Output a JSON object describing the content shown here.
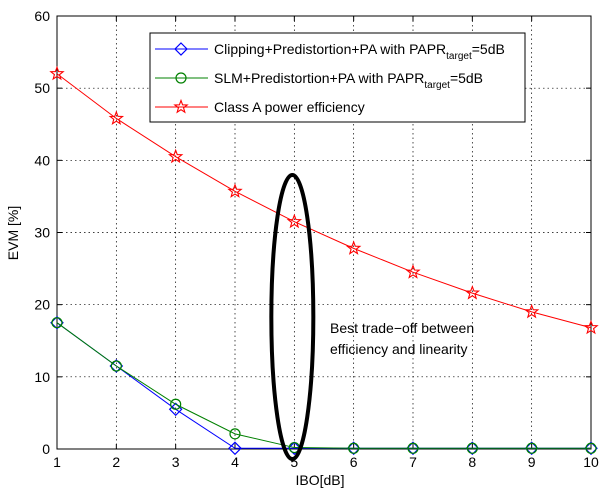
{
  "chart_data": {
    "type": "line",
    "xlabel": "IBO[dB]",
    "ylabel": "EVM [%]",
    "xlim": [
      1,
      10
    ],
    "ylim": [
      0,
      60
    ],
    "xticks": [
      1,
      2,
      3,
      4,
      5,
      6,
      7,
      8,
      9,
      10
    ],
    "yticks": [
      0,
      10,
      20,
      30,
      40,
      50,
      60
    ],
    "grid": true,
    "legend_position": "top-right",
    "x": [
      1,
      2,
      3,
      4,
      5,
      6,
      7,
      8,
      9,
      10
    ],
    "series": [
      {
        "name": "Clipping+Predistortion+PA with PAPRtarget=5dB",
        "legend_main": "Clipping+Predistortion+PA with PAPR",
        "legend_sub": "target",
        "legend_tail": "=5dB",
        "color": "#0000ff",
        "marker": "diamond",
        "values": [
          17.5,
          11.5,
          5.5,
          0.1,
          0.1,
          0.1,
          0.1,
          0.1,
          0.1,
          0.1
        ]
      },
      {
        "name": "SLM+Predistortion+PA with PAPRtarget=5dB",
        "legend_main": "SLM+Predistortion+PA with PAPR",
        "legend_sub": "target",
        "legend_tail": "=5dB",
        "color": "#008000",
        "marker": "circle",
        "values": [
          17.5,
          11.5,
          6.2,
          2.1,
          0.2,
          0.1,
          0.1,
          0.1,
          0.1,
          0.1
        ]
      },
      {
        "name": "Class A power efficiency",
        "legend_main": "Class A power efficiency",
        "legend_sub": "",
        "legend_tail": "",
        "color": "#ff0000",
        "marker": "star",
        "values": [
          52,
          45.8,
          40.5,
          35.7,
          31.5,
          27.8,
          24.5,
          21.6,
          19.0,
          16.8
        ]
      }
    ],
    "annotation": {
      "line1": "Best trade−off between",
      "line2": "efficiency and linearity",
      "ellipse_x": 5
    }
  }
}
